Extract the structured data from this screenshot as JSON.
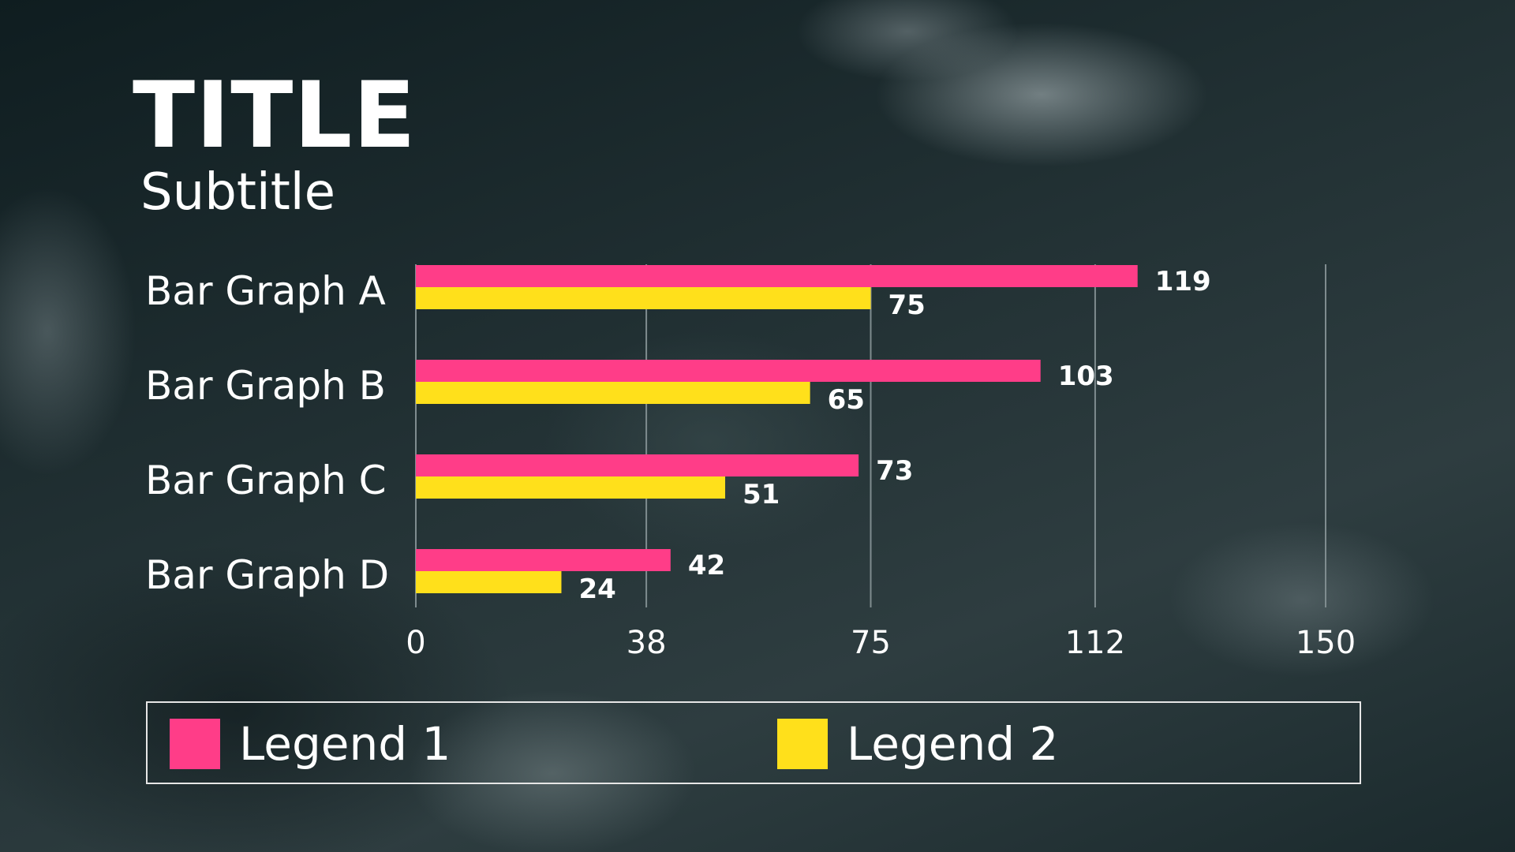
{
  "chart_data": {
    "type": "bar",
    "orientation": "horizontal",
    "title": "TITLE",
    "subtitle": "Subtitle",
    "categories": [
      "Bar Graph A",
      "Bar Graph B",
      "Bar Graph C",
      "Bar Graph D"
    ],
    "series": [
      {
        "name": "Legend 1",
        "color": "#ff3d88",
        "values": [
          119,
          103,
          73,
          42
        ]
      },
      {
        "name": "Legend 2",
        "color": "#ffe01b",
        "values": [
          75,
          65,
          51,
          24
        ]
      }
    ],
    "xlim": [
      0,
      150
    ],
    "xticks": [
      0,
      38,
      75,
      112,
      150
    ],
    "xtick_labels": [
      "0",
      "38",
      "75",
      "112",
      "150"
    ],
    "grid": "vertical",
    "legend_position": "bottom"
  },
  "colors": {
    "text": "#ffffff",
    "grid": "#7f8c8f"
  }
}
